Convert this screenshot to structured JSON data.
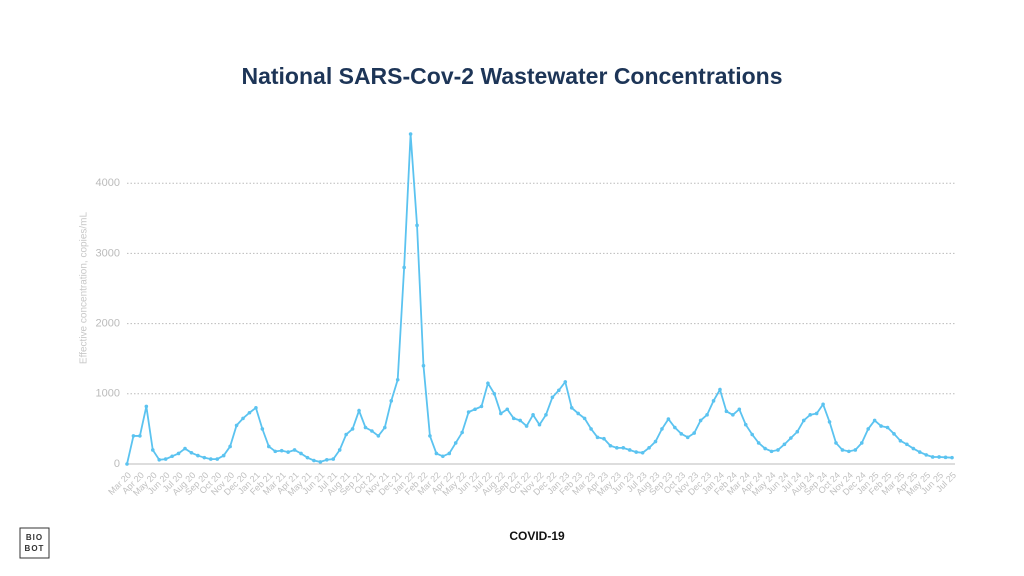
{
  "chart_data": {
    "type": "line",
    "title": "National SARS-Cov-2 Wastewater Concentrations",
    "y_label": "Effective concentration, copies/mL",
    "logo_text": [
      "BIO",
      "BOT"
    ],
    "categories": [
      "Mar 20",
      null,
      "Apr 20",
      null,
      "May 20",
      null,
      "Jun 20",
      null,
      "Jul 20",
      null,
      "Aug 20",
      null,
      "Sep 20",
      null,
      "Oct 20",
      null,
      "Nov 20",
      null,
      "Dec 20",
      null,
      "Jan 21",
      null,
      "Feb 21",
      null,
      "Mar 21",
      null,
      "Apr 21",
      null,
      "May 21",
      null,
      "Jun 21",
      null,
      "Jul 21",
      null,
      "Aug 21",
      null,
      "Sep 21",
      null,
      "Oct 21",
      null,
      "Nov 21",
      null,
      "Dec 21",
      null,
      "Jan 22",
      null,
      "Feb 22",
      null,
      "Mar 22",
      null,
      "Apr 22",
      null,
      "May 22",
      null,
      "Jun 22",
      null,
      "Jul 22",
      null,
      "Aug 22",
      null,
      "Sep 22",
      null,
      "Oct 22",
      null,
      "Nov 22",
      null,
      "Dec 22",
      null,
      "Jan 23",
      null,
      "Feb 23",
      null,
      "Mar 23",
      null,
      "Apr 23",
      null,
      "May 23",
      null,
      "Jun 23",
      null,
      "Jul 23",
      null,
      "Aug 23",
      null,
      "Sep 23",
      null,
      "Oct 23",
      null,
      "Nov 23",
      null,
      "Dec 23",
      null,
      "Jan 24",
      null,
      "Feb 24",
      null,
      "Mar 24",
      null,
      "Apr 24",
      null,
      "May 24",
      null,
      "Jun 24",
      null,
      "Jul 24",
      null,
      "Aug 24",
      null,
      "Sep 24",
      null,
      "Oct 24",
      null,
      "Nov 24",
      null,
      "Dec 24",
      null,
      "Jan 25",
      null,
      "Feb 25",
      null,
      "Mar 25",
      null,
      "Apr 25",
      null,
      "May 25",
      null,
      "Jun 25",
      null,
      "Jul 25"
    ],
    "series": [
      {
        "name": "COVID-19",
        "color": "#5bc3f0",
        "values": [
          0,
          400,
          400,
          820,
          200,
          60,
          70,
          110,
          150,
          220,
          160,
          120,
          90,
          70,
          70,
          120,
          250,
          550,
          650,
          730,
          800,
          500,
          250,
          180,
          190,
          170,
          200,
          150,
          90,
          50,
          30,
          60,
          70,
          200,
          420,
          500,
          760,
          520,
          470,
          400,
          520,
          900,
          1200,
          2800,
          4700,
          3400,
          1400,
          400,
          150,
          110,
          150,
          300,
          450,
          740,
          780,
          820,
          1150,
          1000,
          720,
          780,
          650,
          620,
          540,
          700,
          560,
          700,
          950,
          1050,
          1170,
          800,
          720,
          650,
          500,
          380,
          360,
          260,
          230,
          230,
          200,
          170,
          160,
          230,
          320,
          500,
          640,
          520,
          430,
          380,
          440,
          620,
          700,
          900,
          1060,
          750,
          700,
          780,
          560,
          420,
          300,
          220,
          180,
          200,
          280,
          370,
          460,
          620,
          700,
          720,
          850,
          600,
          300,
          200,
          180,
          200,
          300,
          500,
          620,
          540,
          520,
          430,
          330,
          280,
          220,
          170,
          130,
          100,
          100,
          95,
          90
        ]
      }
    ],
    "ylim": [
      0,
      5000
    ],
    "yticks": [
      0,
      1000,
      2000,
      3000,
      4000
    ],
    "grid": true
  }
}
